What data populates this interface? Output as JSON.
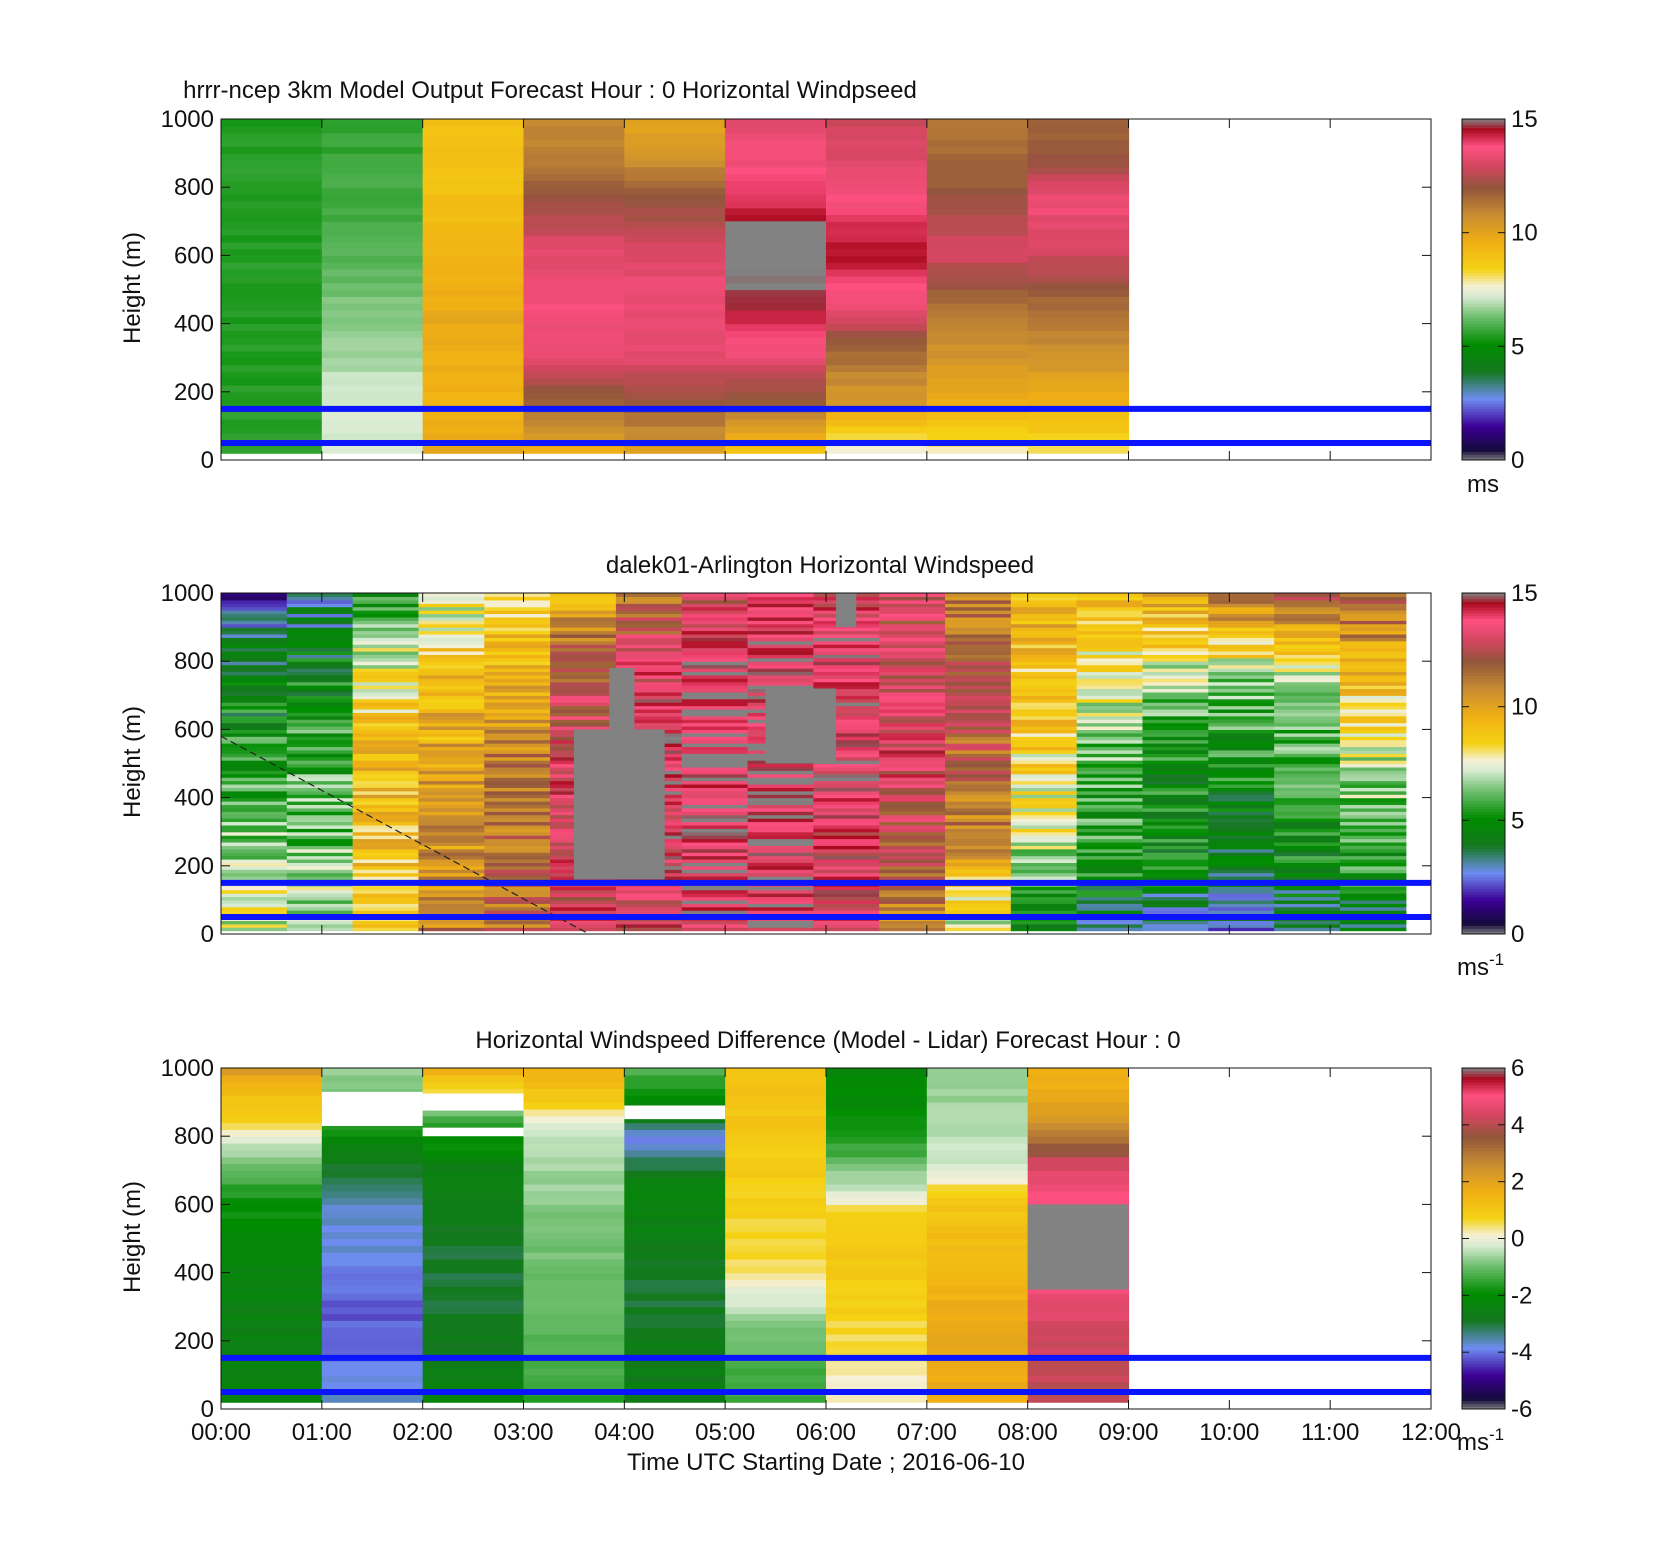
{
  "figure": {
    "xlabel": "Time UTC  Starting Date ; 2016-06-10",
    "xticks": [
      "00:00",
      "01:00",
      "02:00",
      "03:00",
      "04:00",
      "05:00",
      "06:00",
      "07:00",
      "08:00",
      "09:00",
      "10:00",
      "11:00",
      "12:00"
    ],
    "ylabel": "Height (m)",
    "yticks": [
      0,
      200,
      400,
      600,
      800,
      1000
    ],
    "reference_lines_m": [
      50,
      150
    ],
    "reference_line_color": "#0a14ff"
  },
  "chart_data": [
    {
      "type": "heatmap",
      "title": "hrrr-ncep 3km Model Output   Forecast Hour : 0 Horizontal Windpseed",
      "x_range": [
        "00:00",
        "12:00"
      ],
      "y_range": [
        0,
        1000
      ],
      "colorbar": {
        "min": 0,
        "max": 15,
        "ticks": [
          0,
          5,
          10,
          15
        ],
        "unit": "ms",
        "unit_sup": ""
      },
      "data_end_hour": 9,
      "column_profiles": [
        [
          [
            0,
            5.5
          ],
          [
            150,
            5.5
          ],
          [
            300,
            5.5
          ],
          [
            1000,
            5.5
          ]
        ],
        [
          [
            0,
            7.3
          ],
          [
            150,
            7.2
          ],
          [
            300,
            6.8
          ],
          [
            450,
            6.4
          ],
          [
            600,
            6.0
          ],
          [
            800,
            5.8
          ],
          [
            1000,
            5.6
          ]
        ],
        [
          [
            0,
            9.8
          ],
          [
            200,
            9.5
          ],
          [
            400,
            9.8
          ],
          [
            600,
            9.3
          ],
          [
            800,
            9.0
          ],
          [
            1000,
            9.0
          ]
        ],
        [
          [
            0,
            9.5
          ],
          [
            150,
            11.5
          ],
          [
            300,
            13.3
          ],
          [
            450,
            13.6
          ],
          [
            600,
            13.2
          ],
          [
            750,
            12.2
          ],
          [
            900,
            11.0
          ],
          [
            1000,
            10.8
          ]
        ],
        [
          [
            0,
            10.0
          ],
          [
            150,
            11.8
          ],
          [
            300,
            13.3
          ],
          [
            500,
            13.4
          ],
          [
            650,
            12.8
          ],
          [
            800,
            11.6
          ],
          [
            900,
            10.3
          ],
          [
            1000,
            10.0
          ]
        ],
        [
          [
            0,
            8.5
          ],
          [
            150,
            11.6
          ],
          [
            300,
            13.5
          ],
          [
            450,
            14.6
          ],
          [
            550,
            15.2
          ],
          [
            700,
            14.5
          ],
          [
            850,
            13.6
          ],
          [
            1000,
            13.3
          ]
        ],
        [
          [
            0,
            7.0
          ],
          [
            150,
            10.2
          ],
          [
            300,
            11.5
          ],
          [
            420,
            13.2
          ],
          [
            600,
            14.5
          ],
          [
            800,
            13.4
          ],
          [
            1000,
            12.8
          ]
        ],
        [
          [
            0,
            7.5
          ],
          [
            150,
            9.5
          ],
          [
            300,
            10.5
          ],
          [
            450,
            11.5
          ],
          [
            600,
            13.0
          ],
          [
            800,
            11.8
          ],
          [
            1000,
            11.2
          ]
        ],
        [
          [
            0,
            7.8
          ],
          [
            150,
            9.5
          ],
          [
            300,
            10.6
          ],
          [
            450,
            11.5
          ],
          [
            600,
            13.0
          ],
          [
            750,
            13.5
          ],
          [
            900,
            11.8
          ],
          [
            1000,
            11.6
          ]
        ]
      ],
      "gray_cells": [
        {
          "hour": 5,
          "from_m": 600,
          "to_m": 700
        }
      ]
    },
    {
      "type": "heatmap",
      "title": "dalek01-Arlington  Horizontal Windspeed",
      "x_range": [
        "00:00",
        "12:00"
      ],
      "y_range": [
        0,
        1000
      ],
      "colorbar": {
        "min": 0,
        "max": 15,
        "ticks": [
          0,
          5,
          10,
          15
        ],
        "unit": "ms",
        "unit_sup": "-1"
      },
      "data_end_hour": 11.75,
      "column_profiles": [
        [
          [
            0,
            7.5
          ],
          [
            200,
            7.0
          ],
          [
            400,
            6.0
          ],
          [
            600,
            5.0
          ],
          [
            800,
            4.0
          ],
          [
            1000,
            2.0
          ]
        ],
        [
          [
            0,
            7.0
          ],
          [
            200,
            6.5
          ],
          [
            500,
            5.8
          ],
          [
            800,
            4.5
          ],
          [
            1000,
            3.0
          ]
        ],
        [
          [
            0,
            8.0
          ],
          [
            200,
            9.0
          ],
          [
            500,
            9.3
          ],
          [
            800,
            7.5
          ],
          [
            1000,
            5.0
          ]
        ],
        [
          [
            0,
            11.0
          ],
          [
            200,
            10.5
          ],
          [
            500,
            10.0
          ],
          [
            800,
            9.0
          ],
          [
            1000,
            7.0
          ]
        ],
        [
          [
            0,
            11.5
          ],
          [
            200,
            11.5
          ],
          [
            500,
            11.0
          ],
          [
            800,
            9.5
          ],
          [
            1000,
            8.5
          ]
        ],
        [
          [
            0,
            13.0
          ],
          [
            200,
            13.5
          ],
          [
            500,
            13.4
          ],
          [
            800,
            12.0
          ],
          [
            1000,
            9.5
          ]
        ],
        [
          [
            0,
            13.3
          ],
          [
            200,
            13.8
          ],
          [
            500,
            14.0
          ],
          [
            800,
            13.5
          ],
          [
            1000,
            11.0
          ]
        ],
        [
          [
            0,
            13.8
          ],
          [
            200,
            14.2
          ],
          [
            500,
            14.5
          ],
          [
            800,
            14.0
          ],
          [
            1000,
            13.0
          ]
        ],
        [
          [
            0,
            14.2
          ],
          [
            200,
            14.2
          ],
          [
            500,
            14.3
          ],
          [
            800,
            14.3
          ],
          [
            1000,
            13.5
          ]
        ],
        [
          [
            0,
            13.8
          ],
          [
            200,
            13.5
          ],
          [
            500,
            14.0
          ],
          [
            800,
            14.0
          ],
          [
            1000,
            13.5
          ]
        ],
        [
          [
            0,
            11.0
          ],
          [
            200,
            12.0
          ],
          [
            500,
            13.5
          ],
          [
            800,
            13.0
          ],
          [
            1000,
            12.5
          ]
        ],
        [
          [
            0,
            7.0
          ],
          [
            150,
            9.0
          ],
          [
            300,
            11.0
          ],
          [
            600,
            12.0
          ],
          [
            800,
            11.5
          ],
          [
            1000,
            11.0
          ]
        ],
        [
          [
            0,
            4.5
          ],
          [
            150,
            6.0
          ],
          [
            300,
            7.5
          ],
          [
            600,
            8.5
          ],
          [
            800,
            9.0
          ],
          [
            1000,
            9.5
          ]
        ],
        [
          [
            0,
            3.5
          ],
          [
            150,
            5.0
          ],
          [
            300,
            5.5
          ],
          [
            500,
            6.0
          ],
          [
            700,
            7.5
          ],
          [
            900,
            8.5
          ],
          [
            1000,
            9.0
          ]
        ],
        [
          [
            0,
            2.5
          ],
          [
            150,
            4.5
          ],
          [
            300,
            5.0
          ],
          [
            500,
            5.0
          ],
          [
            700,
            6.5
          ],
          [
            900,
            9.0
          ],
          [
            1000,
            10.0
          ]
        ],
        [
          [
            0,
            2.5
          ],
          [
            150,
            4.0
          ],
          [
            300,
            4.5
          ],
          [
            500,
            5.0
          ],
          [
            700,
            6.0
          ],
          [
            900,
            9.5
          ],
          [
            1000,
            12.0
          ]
        ],
        [
          [
            0,
            3.0
          ],
          [
            150,
            4.5
          ],
          [
            300,
            5.0
          ],
          [
            500,
            5.5
          ],
          [
            700,
            6.5
          ],
          [
            900,
            10.0
          ],
          [
            1000,
            13.0
          ]
        ],
        [
          [
            0,
            3.5
          ],
          [
            150,
            5.0
          ],
          [
            300,
            6.0
          ],
          [
            500,
            7.0
          ],
          [
            700,
            8.5
          ],
          [
            900,
            11.0
          ],
          [
            1000,
            12.0
          ]
        ]
      ],
      "gray_regions": [
        {
          "hour_from": 3.5,
          "hour_to": 4.4,
          "from_m": 160,
          "to_m": 600
        },
        {
          "hour_from": 3.85,
          "hour_to": 4.1,
          "from_m": 600,
          "to_m": 780
        },
        {
          "hour_from": 5.4,
          "hour_to": 6.1,
          "from_m": 500,
          "to_m": 720
        },
        {
          "hour_from": 6.1,
          "hour_to": 6.3,
          "from_m": 900,
          "to_m": 1000
        }
      ],
      "dashed_line": [
        [
          0,
          580
        ],
        [
          3.65,
          0
        ]
      ]
    },
    {
      "type": "heatmap",
      "title": "Horizontal Windspeed Difference (Model - Lidar) Forecast Hour : 0",
      "x_range": [
        "00:00",
        "12:00"
      ],
      "y_range": [
        0,
        1000
      ],
      "colorbar": {
        "min": -6,
        "max": 6,
        "ticks": [
          -6,
          -4,
          -2,
          0,
          2,
          4,
          6
        ],
        "unit": "ms",
        "unit_sup": "-1"
      },
      "data_end_hour": 9,
      "column_profiles": [
        [
          [
            0,
            -2.4
          ],
          [
            200,
            -2.5
          ],
          [
            400,
            -2.3
          ],
          [
            600,
            -1.8
          ],
          [
            750,
            -0.5
          ],
          [
            850,
            0.8
          ],
          [
            950,
            1.5
          ],
          [
            1000,
            3.0
          ]
        ],
        [
          [
            0,
            -3.5
          ],
          [
            200,
            -4.2
          ],
          [
            300,
            -4.1
          ],
          [
            450,
            -3.8
          ],
          [
            600,
            -3.6
          ],
          [
            700,
            -2.8
          ],
          [
            850,
            -1.5
          ],
          [
            1000,
            -0.5
          ]
        ],
        [
          [
            0,
            -2.3
          ],
          [
            200,
            -2.8
          ],
          [
            400,
            -3.0
          ],
          [
            600,
            -2.7
          ],
          [
            700,
            -2.5
          ],
          [
            850,
            -1.2
          ],
          [
            920,
            0.6
          ],
          [
            1000,
            1.8
          ]
        ],
        [
          [
            0,
            -1.5
          ],
          [
            200,
            -1.2
          ],
          [
            400,
            -1.0
          ],
          [
            600,
            -0.8
          ],
          [
            800,
            -0.3
          ],
          [
            900,
            1.0
          ],
          [
            1000,
            1.6
          ]
        ],
        [
          [
            0,
            -2.5
          ],
          [
            200,
            -2.8
          ],
          [
            350,
            -3.0
          ],
          [
            500,
            -2.6
          ],
          [
            650,
            -2.3
          ],
          [
            780,
            -4.0
          ],
          [
            850,
            -2.5
          ],
          [
            950,
            -1.5
          ],
          [
            1000,
            -1.0
          ]
        ],
        [
          [
            0,
            -1.5
          ],
          [
            200,
            -1.0
          ],
          [
            400,
            0.5
          ],
          [
            600,
            0.8
          ],
          [
            800,
            1.0
          ],
          [
            1000,
            1.2
          ]
        ],
        [
          [
            0,
            0.0
          ],
          [
            200,
            0.6
          ],
          [
            400,
            1.0
          ],
          [
            550,
            0.8
          ],
          [
            650,
            -0.5
          ],
          [
            800,
            -1.8
          ],
          [
            1000,
            -2.2
          ]
        ],
        [
          [
            0,
            1.7
          ],
          [
            200,
            1.8
          ],
          [
            400,
            1.5
          ],
          [
            600,
            1.0
          ],
          [
            700,
            -0.3
          ],
          [
            850,
            -0.6
          ],
          [
            1000,
            -0.7
          ]
        ],
        [
          [
            0,
            4.0
          ],
          [
            200,
            4.3
          ],
          [
            350,
            4.8
          ],
          [
            600,
            5.0
          ],
          [
            700,
            4.5
          ],
          [
            800,
            2.8
          ],
          [
            900,
            1.8
          ],
          [
            1000,
            1.5
          ]
        ]
      ],
      "white_cells": [
        {
          "hour": 1,
          "from_m": 830,
          "to_m": 930
        },
        {
          "hour": 2,
          "from_m": 875,
          "to_m": 925
        },
        {
          "hour": 2,
          "from_m": 800,
          "to_m": 825
        },
        {
          "hour": 4,
          "from_m": 850,
          "to_m": 890
        }
      ],
      "gray_cells": [
        {
          "hour": 8,
          "from_m": 350,
          "to_m": 600
        }
      ]
    }
  ]
}
